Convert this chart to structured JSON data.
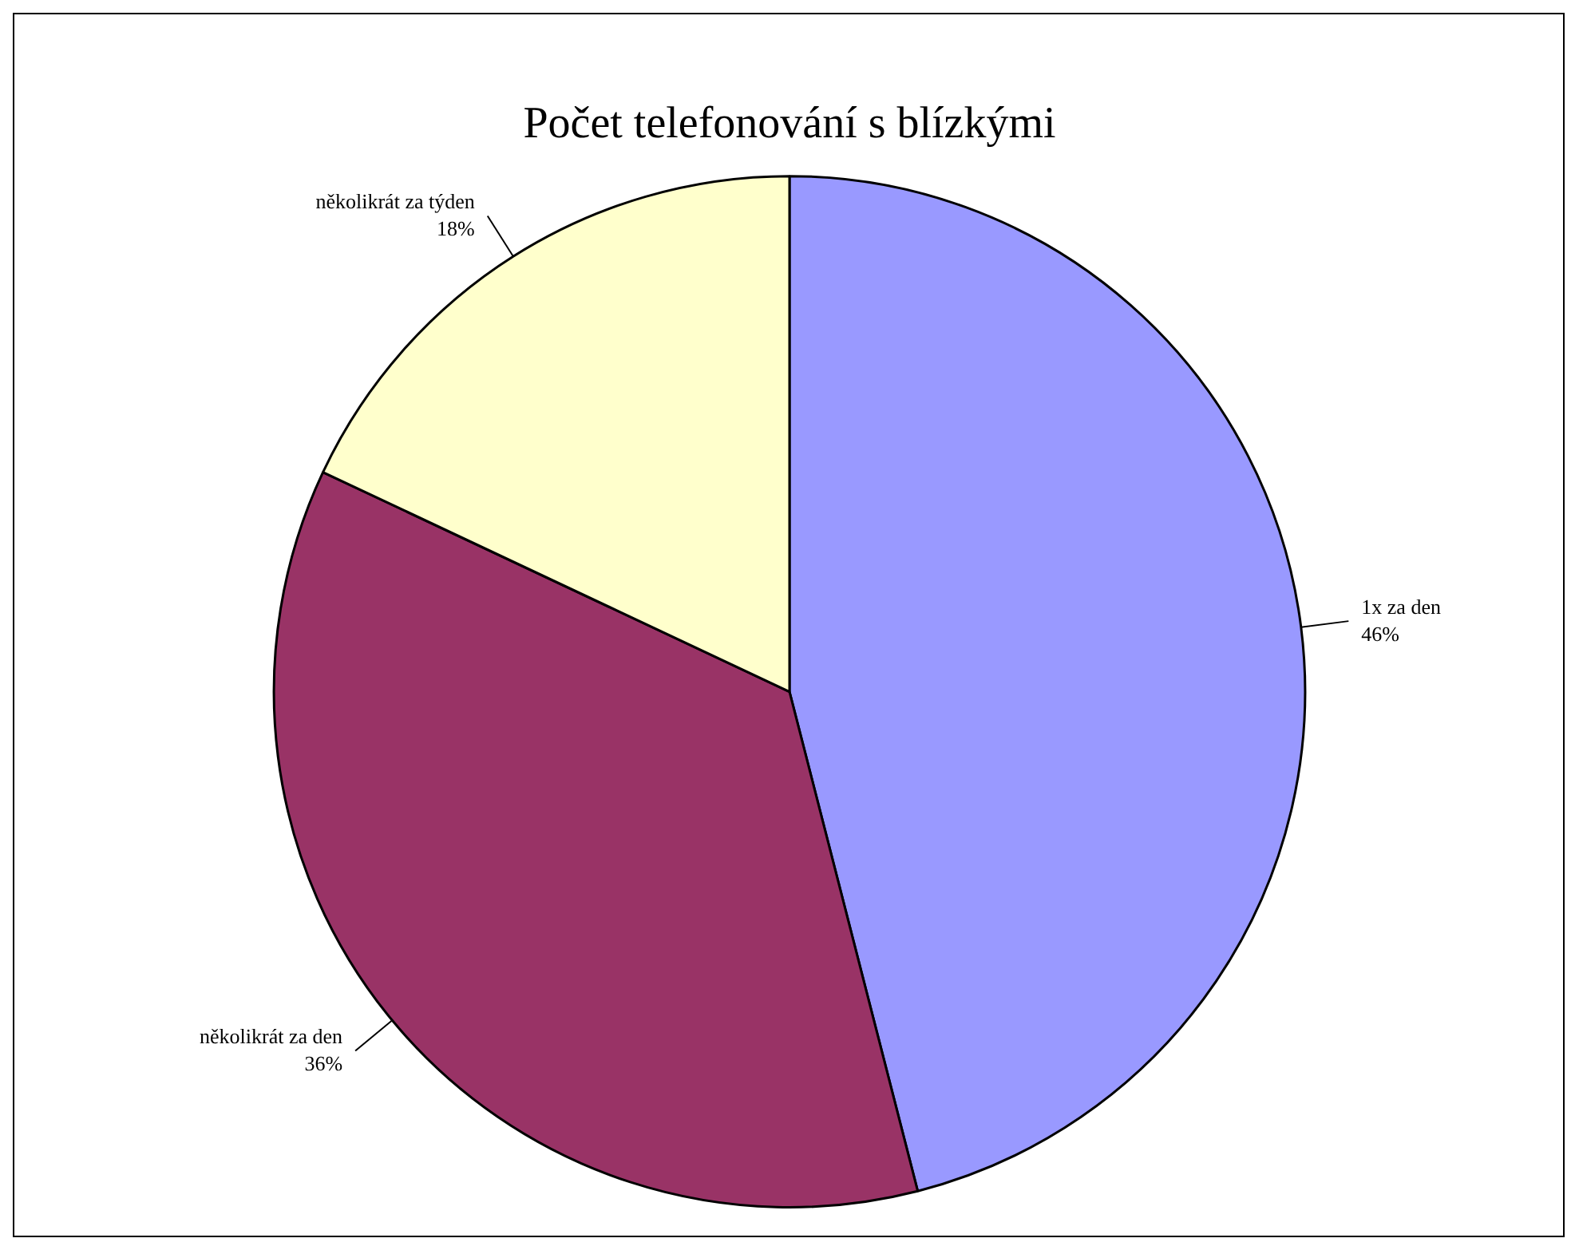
{
  "chart_data": {
    "type": "pie",
    "title": "Počet telefonování s blízkými",
    "categories": [
      "1x za den",
      "několikrát za den",
      "několikrát za týden"
    ],
    "values": [
      46,
      36,
      18
    ],
    "colors": [
      "#9999ff",
      "#993366",
      "#ffffcc"
    ],
    "value_labels": [
      "46%",
      "36%",
      "18%"
    ],
    "legend": false
  }
}
